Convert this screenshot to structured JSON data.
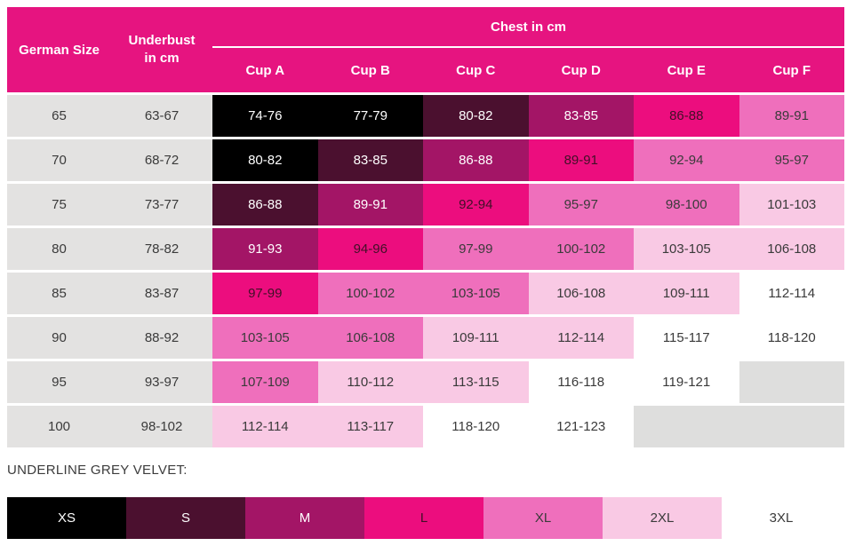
{
  "chart_data": {
    "type": "table",
    "title": "Bra size chart",
    "palette": {
      "header_pink": "#E61480",
      "label_grey": "#E3E2E1",
      "black": "#000000",
      "plum": "#4B102F",
      "berry": "#A31566",
      "hot": "#EC0D7E",
      "pink": "#EF6FBC",
      "blush": "#F9C9E4",
      "white": "#FFFFFF",
      "empty": "#DEDEDD"
    },
    "text_colors": {
      "black": "#FFFFFF",
      "plum": "#FFFFFF",
      "berry": "#FFFFFF",
      "hot": "#401027",
      "pink": "#3A3A3A",
      "blush": "#3A3A3A",
      "white": "#3A3A3A",
      "empty": "#3A3A3A"
    },
    "header": {
      "col_german": "German Size",
      "col_underbust_line1": "Underbust",
      "col_underbust_line2": "in cm",
      "chest_title": "Chest in cm",
      "cups": [
        "Cup A",
        "Cup B",
        "Cup C",
        "Cup D",
        "Cup E",
        "Cup F"
      ]
    },
    "rows": [
      {
        "size": "65",
        "underbust": "63-67",
        "cells": [
          {
            "value": "74-76",
            "color": "black"
          },
          {
            "value": "77-79",
            "color": "black"
          },
          {
            "value": "80-82",
            "color": "plum"
          },
          {
            "value": "83-85",
            "color": "berry"
          },
          {
            "value": "86-88",
            "color": "hot"
          },
          {
            "value": "89-91",
            "color": "pink"
          }
        ]
      },
      {
        "size": "70",
        "underbust": "68-72",
        "cells": [
          {
            "value": "80-82",
            "color": "black"
          },
          {
            "value": "83-85",
            "color": "plum"
          },
          {
            "value": "86-88",
            "color": "berry"
          },
          {
            "value": "89-91",
            "color": "hot"
          },
          {
            "value": "92-94",
            "color": "pink"
          },
          {
            "value": "95-97",
            "color": "pink"
          }
        ]
      },
      {
        "size": "75",
        "underbust": "73-77",
        "cells": [
          {
            "value": "86-88",
            "color": "plum"
          },
          {
            "value": "89-91",
            "color": "berry"
          },
          {
            "value": "92-94",
            "color": "hot"
          },
          {
            "value": "95-97",
            "color": "pink"
          },
          {
            "value": "98-100",
            "color": "pink"
          },
          {
            "value": "101-103",
            "color": "blush"
          }
        ]
      },
      {
        "size": "80",
        "underbust": "78-82",
        "cells": [
          {
            "value": "91-93",
            "color": "berry"
          },
          {
            "value": "94-96",
            "color": "hot"
          },
          {
            "value": "97-99",
            "color": "pink"
          },
          {
            "value": "100-102",
            "color": "pink"
          },
          {
            "value": "103-105",
            "color": "blush"
          },
          {
            "value": "106-108",
            "color": "blush"
          }
        ]
      },
      {
        "size": "85",
        "underbust": "83-87",
        "cells": [
          {
            "value": "97-99",
            "color": "hot"
          },
          {
            "value": "100-102",
            "color": "pink"
          },
          {
            "value": "103-105",
            "color": "pink"
          },
          {
            "value": "106-108",
            "color": "blush"
          },
          {
            "value": "109-111",
            "color": "blush"
          },
          {
            "value": "112-114",
            "color": "white"
          }
        ]
      },
      {
        "size": "90",
        "underbust": "88-92",
        "cells": [
          {
            "value": "103-105",
            "color": "pink"
          },
          {
            "value": "106-108",
            "color": "pink"
          },
          {
            "value": "109-111",
            "color": "blush"
          },
          {
            "value": "112-114",
            "color": "blush"
          },
          {
            "value": "115-117",
            "color": "white"
          },
          {
            "value": "118-120",
            "color": "white"
          }
        ]
      },
      {
        "size": "95",
        "underbust": "93-97",
        "cells": [
          {
            "value": "107-109",
            "color": "pink"
          },
          {
            "value": "110-112",
            "color": "blush"
          },
          {
            "value": "113-115",
            "color": "blush"
          },
          {
            "value": "116-118",
            "color": "white"
          },
          {
            "value": "119-121",
            "color": "white"
          },
          {
            "value": "",
            "color": "empty"
          }
        ]
      },
      {
        "size": "100",
        "underbust": "98-102",
        "cells": [
          {
            "value": "112-114",
            "color": "blush"
          },
          {
            "value": "113-117",
            "color": "blush"
          },
          {
            "value": "118-120",
            "color": "white"
          },
          {
            "value": "121-123",
            "color": "white"
          },
          {
            "value": "",
            "color": "empty"
          },
          {
            "value": "",
            "color": "empty"
          }
        ]
      }
    ],
    "legend_title": "UNDERLINE GREY VELVET:",
    "band": [
      {
        "label": "XS",
        "color": "black"
      },
      {
        "label": "S",
        "color": "plum"
      },
      {
        "label": "M",
        "color": "berry"
      },
      {
        "label": "L",
        "color": "hot"
      },
      {
        "label": "XL",
        "color": "pink"
      },
      {
        "label": "2XL",
        "color": "blush"
      },
      {
        "label": "3XL",
        "color": "white"
      }
    ]
  }
}
